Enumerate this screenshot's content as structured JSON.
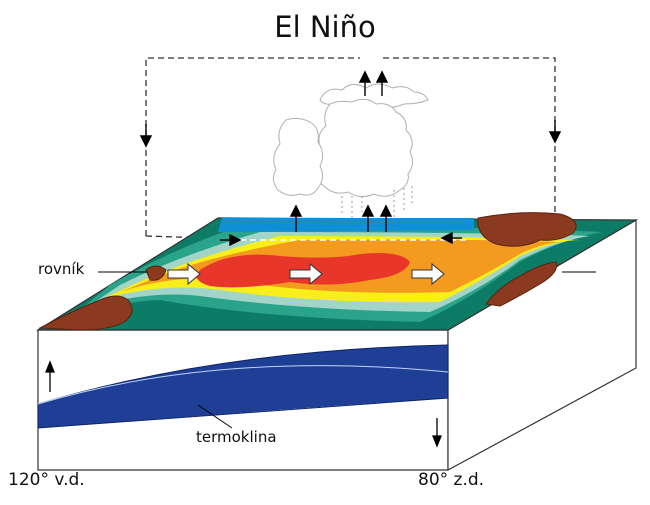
{
  "title": "El Niño",
  "labels": {
    "equator": "rovník",
    "thermocline": "termoklina",
    "west_longitude": "120° v.d.",
    "east_longitude": "80° z.d."
  },
  "colors": {
    "warm_core": "#e8362a",
    "warm_orange": "#f39a1f",
    "yellow": "#f7ee1a",
    "light_teal": "#a2d5c7",
    "teal": "#2aa38b",
    "dark_teal": "#0c7c67",
    "blue_surface": "#0f8fd6",
    "deep_ocean": "#1f3f97",
    "land_brown": "#8c3a1f",
    "wind_black": "#000000",
    "current_white": "#ffffff"
  }
}
